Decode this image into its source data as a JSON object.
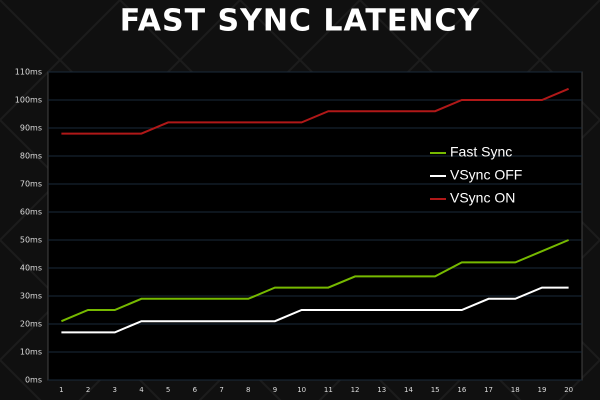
{
  "chart_data": {
    "type": "line",
    "title": "FAST SYNC LATENCY",
    "categories": [
      "1",
      "2",
      "3",
      "4",
      "5",
      "6",
      "7",
      "8",
      "9",
      "10",
      "11",
      "12",
      "13",
      "14",
      "15",
      "16",
      "17",
      "18",
      "19",
      "20"
    ],
    "series": [
      {
        "name": "Fast Sync",
        "color": "#76b900",
        "values": [
          21,
          25,
          25,
          29,
          29,
          29,
          29,
          29,
          33,
          33,
          33,
          37,
          37,
          37,
          37,
          42,
          42,
          42,
          46,
          50
        ]
      },
      {
        "name": "VSync OFF",
        "color": "#ffffff",
        "values": [
          17,
          17,
          17,
          21,
          21,
          21,
          21,
          21,
          21,
          25,
          25,
          25,
          25,
          25,
          25,
          25,
          29,
          29,
          33,
          33
        ]
      },
      {
        "name": "VSync ON",
        "color": "#b01818",
        "values": [
          88,
          88,
          88,
          88,
          92,
          92,
          92,
          92,
          92,
          92,
          96,
          96,
          96,
          96,
          96,
          100,
          100,
          100,
          100,
          104
        ]
      }
    ],
    "ylim": [
      0,
      110
    ],
    "yticks": [
      {
        "value": 0,
        "label": "0ms"
      },
      {
        "value": 10,
        "label": "10ms"
      },
      {
        "value": 20,
        "label": "20ms"
      },
      {
        "value": 30,
        "label": "30ms"
      },
      {
        "value": 40,
        "label": "40ms"
      },
      {
        "value": 50,
        "label": "50ms"
      },
      {
        "value": 60,
        "label": "60ms"
      },
      {
        "value": 70,
        "label": "70ms"
      },
      {
        "value": 80,
        "label": "80ms"
      },
      {
        "value": 90,
        "label": "90ms"
      },
      {
        "value": 100,
        "label": "100ms"
      },
      {
        "value": 110,
        "label": "110ms"
      }
    ],
    "grid": true,
    "legend": "right"
  }
}
